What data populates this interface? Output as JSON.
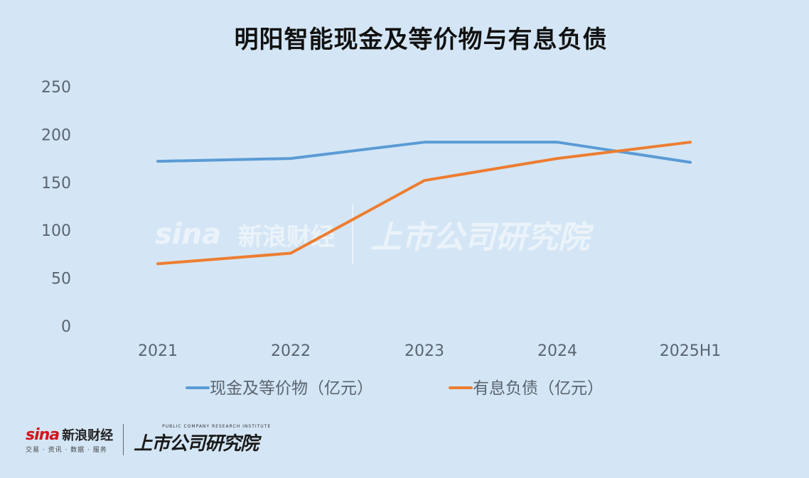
{
  "chart_data": {
    "type": "line",
    "title": "明阳智能现金及等价物与有息负债",
    "categories": [
      "2021",
      "2022",
      "2023",
      "2024",
      "2025H1"
    ],
    "series": [
      {
        "name": "现金及等价物（亿元）",
        "values": [
          172,
          175,
          192,
          192,
          171
        ],
        "color": "#5b9bd5"
      },
      {
        "name": "有息负债（亿元）",
        "values": [
          65,
          76,
          152,
          175,
          192
        ],
        "color": "#ed7d31"
      }
    ],
    "ylim": [
      0,
      250
    ],
    "yticks": [
      0,
      50,
      100,
      150,
      200,
      250
    ],
    "grid": false,
    "legend_position": "bottom"
  },
  "footer": {
    "sina_word": "sina",
    "sina_cn": "新浪财经",
    "sina_sub": "交易 · 资讯 · 数据 · 服务",
    "inst_en": "PUBLIC COMPANY RESEARCH INSTITUTE",
    "inst_cn": "上市公司研究院"
  },
  "watermark": {
    "sina_word": "sina",
    "sina_cn": "新浪财经",
    "inst_cn": "上市公司研究院"
  }
}
